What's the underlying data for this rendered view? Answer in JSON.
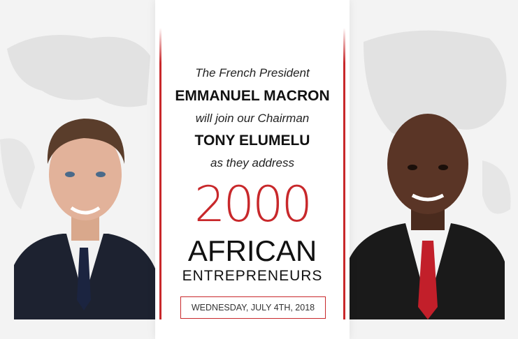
{
  "poster": {
    "line1": "The French President",
    "line2": "EMMANUEL MACRON",
    "line3": "will join our Chairman",
    "line4": "TONY ELUMELU",
    "line5": "as they address",
    "number": "2000",
    "word1": "AFRICAN",
    "word2": "ENTREPRENEURS",
    "date": "WEDNESDAY, JULY 4TH, 2018"
  },
  "colors": {
    "accent": "#c8282b",
    "background": "#f3f3f3"
  }
}
